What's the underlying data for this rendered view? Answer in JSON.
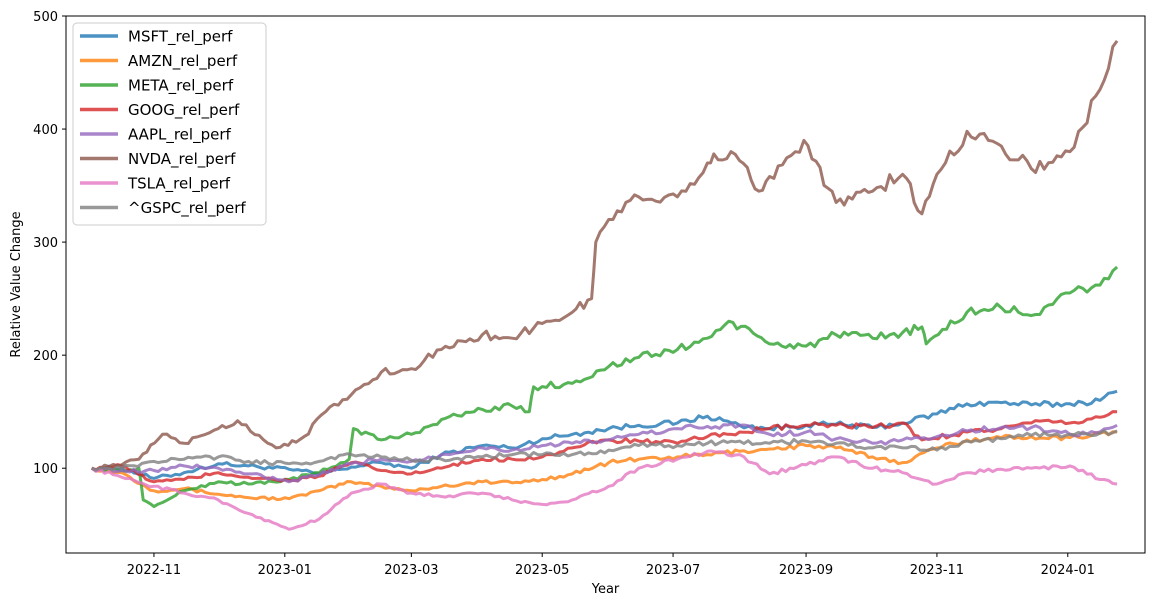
{
  "chart_data": {
    "type": "line",
    "title": "",
    "xlabel": "Year",
    "ylabel": "Relative Value Change",
    "x_range": [
      "2022-09-21",
      "2024-02-06"
    ],
    "ylim": [
      25,
      500
    ],
    "x_ticks": [
      {
        "date": "2022-11-01",
        "label": "2022-11"
      },
      {
        "date": "2023-01-01",
        "label": "2023-01"
      },
      {
        "date": "2023-03-01",
        "label": "2023-03"
      },
      {
        "date": "2023-05-01",
        "label": "2023-05"
      },
      {
        "date": "2023-07-01",
        "label": "2023-07"
      },
      {
        "date": "2023-09-01",
        "label": "2023-09"
      },
      {
        "date": "2023-11-01",
        "label": "2023-11"
      },
      {
        "date": "2024-01-01",
        "label": "2024-01"
      }
    ],
    "y_ticks": [
      100,
      200,
      300,
      400,
      500
    ],
    "grid": false,
    "legend_position": "top-left",
    "series": [
      {
        "name": "MSFT_rel_perf",
        "color": "#1f77b4",
        "dates": [
          "2022-10-03",
          "2022-10-17",
          "2022-11-01",
          "2022-11-15",
          "2022-12-01",
          "2022-12-15",
          "2023-01-03",
          "2023-01-17",
          "2023-02-01",
          "2023-02-15",
          "2023-03-01",
          "2023-03-15",
          "2023-04-03",
          "2023-04-17",
          "2023-05-01",
          "2023-05-15",
          "2023-06-01",
          "2023-06-15",
          "2023-07-03",
          "2023-07-17",
          "2023-08-01",
          "2023-08-15",
          "2023-09-01",
          "2023-09-15",
          "2023-10-02",
          "2023-10-16",
          "2023-11-01",
          "2023-11-15",
          "2023-12-01",
          "2023-12-15",
          "2024-01-02",
          "2024-01-16",
          "2024-01-24"
        ],
        "values": [
          100,
          100,
          91,
          96,
          104,
          102,
          99,
          95,
          101,
          105,
          100,
          112,
          120,
          118,
          126,
          130,
          135,
          138,
          140,
          146,
          138,
          135,
          138,
          139,
          136,
          140,
          148,
          157,
          158,
          156,
          157,
          160,
          168
        ]
      },
      {
        "name": "AMZN_rel_perf",
        "color": "#ff7f0e",
        "dates": [
          "2022-10-03",
          "2022-10-17",
          "2022-11-01",
          "2022-11-15",
          "2022-12-01",
          "2022-12-15",
          "2023-01-03",
          "2023-01-17",
          "2023-02-01",
          "2023-02-15",
          "2023-03-01",
          "2023-03-15",
          "2023-04-03",
          "2023-04-17",
          "2023-05-01",
          "2023-05-15",
          "2023-06-01",
          "2023-06-15",
          "2023-07-03",
          "2023-07-17",
          "2023-08-01",
          "2023-08-15",
          "2023-09-01",
          "2023-09-15",
          "2023-10-02",
          "2023-10-16",
          "2023-11-01",
          "2023-11-15",
          "2023-12-01",
          "2023-12-15",
          "2024-01-02",
          "2024-01-16",
          "2024-01-24"
        ],
        "values": [
          100,
          96,
          80,
          82,
          77,
          74,
          73,
          80,
          88,
          84,
          80,
          84,
          88,
          87,
          90,
          95,
          105,
          108,
          110,
          112,
          115,
          117,
          120,
          118,
          110,
          105,
          118,
          125,
          127,
          128,
          127,
          131,
          132
        ]
      },
      {
        "name": "META_rel_perf",
        "color": "#2ca02c",
        "dates": [
          "2022-10-03",
          "2022-10-17",
          "2022-10-25",
          "2022-10-27",
          "2022-11-01",
          "2022-11-15",
          "2022-12-01",
          "2022-12-15",
          "2023-01-03",
          "2023-01-17",
          "2023-01-31",
          "2023-02-02",
          "2023-02-15",
          "2023-03-01",
          "2023-03-15",
          "2023-04-03",
          "2023-04-17",
          "2023-04-25",
          "2023-04-27",
          "2023-05-15",
          "2023-06-01",
          "2023-06-15",
          "2023-07-03",
          "2023-07-17",
          "2023-07-27",
          "2023-08-15",
          "2023-09-01",
          "2023-09-15",
          "2023-10-02",
          "2023-10-16",
          "2023-10-25",
          "2023-10-27",
          "2023-11-15",
          "2023-12-01",
          "2023-12-15",
          "2024-01-02",
          "2024-01-16",
          "2024-01-24"
        ],
        "values": [
          100,
          98,
          100,
          72,
          66,
          80,
          88,
          86,
          90,
          96,
          108,
          135,
          125,
          130,
          143,
          152,
          155,
          150,
          172,
          175,
          190,
          198,
          205,
          215,
          230,
          210,
          208,
          218,
          215,
          220,
          225,
          210,
          238,
          242,
          235,
          255,
          262,
          278
        ]
      },
      {
        "name": "GOOG_rel_perf",
        "color": "#d62728",
        "dates": [
          "2022-10-03",
          "2022-10-17",
          "2022-11-01",
          "2022-11-15",
          "2022-12-01",
          "2022-12-15",
          "2023-01-03",
          "2023-01-17",
          "2023-02-01",
          "2023-02-15",
          "2023-03-01",
          "2023-03-15",
          "2023-04-03",
          "2023-04-17",
          "2023-05-01",
          "2023-05-15",
          "2023-06-01",
          "2023-06-15",
          "2023-07-03",
          "2023-07-17",
          "2023-08-01",
          "2023-08-15",
          "2023-09-01",
          "2023-09-15",
          "2023-10-02",
          "2023-10-16",
          "2023-10-25",
          "2023-11-15",
          "2023-12-01",
          "2023-12-15",
          "2024-01-02",
          "2024-01-16",
          "2024-01-24"
        ],
        "values": [
          100,
          102,
          88,
          90,
          96,
          92,
          89,
          93,
          105,
          98,
          95,
          100,
          108,
          108,
          110,
          118,
          125,
          124,
          122,
          128,
          132,
          135,
          138,
          138,
          136,
          140,
          125,
          132,
          135,
          140,
          140,
          145,
          150
        ]
      },
      {
        "name": "AAPL_rel_perf",
        "color": "#9467bd",
        "dates": [
          "2022-10-03",
          "2022-10-17",
          "2022-11-01",
          "2022-11-15",
          "2022-12-01",
          "2022-12-15",
          "2023-01-03",
          "2023-01-17",
          "2023-02-01",
          "2023-02-15",
          "2023-03-01",
          "2023-03-15",
          "2023-04-03",
          "2023-04-17",
          "2023-05-01",
          "2023-05-15",
          "2023-06-01",
          "2023-06-15",
          "2023-07-03",
          "2023-07-17",
          "2023-08-01",
          "2023-08-15",
          "2023-09-01",
          "2023-09-15",
          "2023-10-02",
          "2023-10-16",
          "2023-11-01",
          "2023-11-15",
          "2023-12-01",
          "2023-12-15",
          "2024-01-02",
          "2024-01-16",
          "2024-01-24"
        ],
        "values": [
          100,
          98,
          98,
          102,
          100,
          95,
          88,
          94,
          104,
          108,
          106,
          112,
          118,
          116,
          120,
          122,
          125,
          130,
          135,
          137,
          138,
          130,
          132,
          126,
          122,
          125,
          128,
          133,
          136,
          136,
          130,
          132,
          138
        ]
      },
      {
        "name": "NVDA_rel_perf",
        "color": "#8c564b",
        "dates": [
          "2022-10-03",
          "2022-10-17",
          "2022-10-25",
          "2022-11-05",
          "2022-11-15",
          "2022-12-01",
          "2022-12-10",
          "2022-12-28",
          "2023-01-10",
          "2023-01-20",
          "2023-02-01",
          "2023-02-15",
          "2023-03-01",
          "2023-03-15",
          "2023-04-03",
          "2023-04-17",
          "2023-05-01",
          "2023-05-15",
          "2023-05-24",
          "2023-05-26",
          "2023-06-01",
          "2023-06-15",
          "2023-07-03",
          "2023-07-17",
          "2023-07-20",
          "2023-08-01",
          "2023-08-10",
          "2023-08-15",
          "2023-08-31",
          "2023-09-15",
          "2023-10-02",
          "2023-10-16",
          "2023-10-25",
          "2023-11-01",
          "2023-11-15",
          "2023-12-01",
          "2023-12-15",
          "2024-01-02",
          "2024-01-16",
          "2024-01-24"
        ],
        "values": [
          100,
          103,
          108,
          130,
          122,
          135,
          142,
          118,
          128,
          150,
          165,
          185,
          188,
          205,
          218,
          215,
          228,
          238,
          250,
          300,
          320,
          340,
          340,
          370,
          378,
          372,
          345,
          358,
          390,
          335,
          345,
          360,
          325,
          360,
          398,
          385,
          365,
          380,
          435,
          478
        ]
      },
      {
        "name": "TSLA_rel_perf",
        "color": "#e377c2",
        "dates": [
          "2022-10-03",
          "2022-10-17",
          "2022-11-01",
          "2022-11-15",
          "2022-12-01",
          "2022-12-15",
          "2023-01-03",
          "2023-01-17",
          "2023-02-01",
          "2023-02-15",
          "2023-03-01",
          "2023-03-15",
          "2023-04-03",
          "2023-04-17",
          "2023-05-01",
          "2023-05-15",
          "2023-06-01",
          "2023-06-15",
          "2023-07-03",
          "2023-07-17",
          "2023-08-01",
          "2023-08-15",
          "2023-09-01",
          "2023-09-15",
          "2023-10-02",
          "2023-10-16",
          "2023-11-01",
          "2023-11-15",
          "2023-12-01",
          "2023-12-15",
          "2024-01-02",
          "2024-01-16",
          "2024-01-24"
        ],
        "values": [
          100,
          92,
          84,
          78,
          72,
          60,
          46,
          55,
          78,
          86,
          78,
          75,
          78,
          72,
          68,
          72,
          84,
          100,
          108,
          115,
          112,
          95,
          103,
          110,
          100,
          96,
          86,
          96,
          99,
          100,
          102,
          90,
          86
        ]
      },
      {
        "name": "^GSPC_rel_perf",
        "color": "#7f7f7f",
        "dates": [
          "2022-10-03",
          "2022-10-17",
          "2022-11-01",
          "2022-11-15",
          "2022-12-01",
          "2022-12-15",
          "2023-01-03",
          "2023-01-17",
          "2023-02-01",
          "2023-02-15",
          "2023-03-01",
          "2023-03-15",
          "2023-04-03",
          "2023-04-17",
          "2023-05-01",
          "2023-05-15",
          "2023-06-01",
          "2023-06-15",
          "2023-07-03",
          "2023-07-17",
          "2023-08-01",
          "2023-08-15",
          "2023-09-01",
          "2023-09-15",
          "2023-10-02",
          "2023-10-16",
          "2023-11-01",
          "2023-11-15",
          "2023-12-01",
          "2023-12-15",
          "2024-01-02",
          "2024-01-16",
          "2024-01-24"
        ],
        "values": [
          100,
          100,
          106,
          108,
          110,
          106,
          104,
          106,
          112,
          110,
          107,
          108,
          110,
          112,
          112,
          112,
          116,
          120,
          120,
          122,
          124,
          122,
          124,
          122,
          118,
          118,
          116,
          124,
          126,
          129,
          130,
          131,
          133
        ]
      }
    ]
  }
}
